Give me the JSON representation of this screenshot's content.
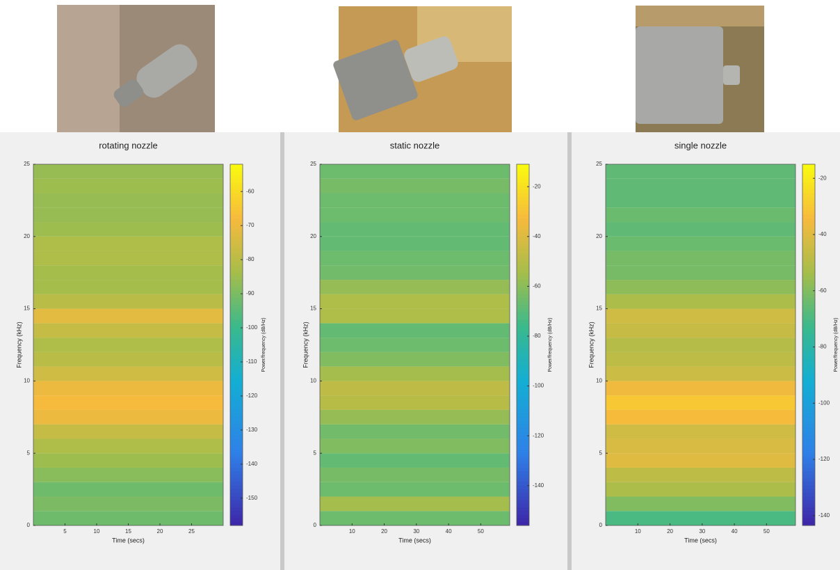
{
  "chart_data": [
    {
      "type": "spectrogram",
      "title": "rotating nozzle",
      "xlabel": "Time (secs)",
      "ylabel": "Frequency (kHz)",
      "colorbar_label": "Power/frequency (dB/Hz)",
      "colormap": "parula",
      "xlim": [
        0,
        30
      ],
      "xticks": [
        5,
        10,
        15,
        20,
        25
      ],
      "ylim": [
        0,
        25
      ],
      "yticks": [
        0,
        5,
        10,
        15,
        20,
        25
      ],
      "clim": [
        -158,
        -52
      ],
      "cticks": [
        -60,
        -70,
        -80,
        -90,
        -100,
        -110,
        -120,
        -130,
        -140,
        -150
      ],
      "frequencies": [
        0.5,
        1.5,
        2.5,
        3.5,
        4.5,
        5.5,
        6.5,
        7.5,
        8.5,
        9.5,
        10.5,
        11.5,
        12.5,
        13.5,
        14.5,
        15.5,
        16.5,
        17.5,
        18.5,
        19.5,
        20.5,
        21.5,
        22.5,
        23.5,
        24.5
      ],
      "power": [
        -92,
        -90,
        -92,
        -88,
        -85,
        -82,
        -78,
        -70,
        -68,
        -70,
        -76,
        -80,
        -82,
        -78,
        -72,
        -80,
        -84,
        -84,
        -82,
        -82,
        -85,
        -86,
        -86,
        -85,
        -86
      ]
    },
    {
      "type": "spectrogram",
      "title": "static nozzle",
      "xlabel": "Time (secs)",
      "ylabel": "Frequency (kHz)",
      "colorbar_label": "Power/frequency (dB/Hz)",
      "colormap": "parula",
      "xlim": [
        0,
        59
      ],
      "xticks": [
        10,
        20,
        30,
        40,
        50
      ],
      "ylim": [
        0,
        25
      ],
      "yticks": [
        0,
        5,
        10,
        15,
        20,
        25
      ],
      "clim": [
        -156,
        -11
      ],
      "cticks": [
        -20,
        -40,
        -60,
        -80,
        -100,
        -120,
        -140
      ],
      "frequencies": [
        0.5,
        1.5,
        2.5,
        3.5,
        4.5,
        5.5,
        6.5,
        7.5,
        8.5,
        9.5,
        10.5,
        11.5,
        12.5,
        13.5,
        14.5,
        15.5,
        16.5,
        17.5,
        18.5,
        19.5,
        20.5,
        21.5,
        22.5,
        23.5,
        24.5
      ],
      "power": [
        -66,
        -55,
        -66,
        -64,
        -68,
        -62,
        -65,
        -58,
        -50,
        -48,
        -55,
        -62,
        -66,
        -68,
        -52,
        -52,
        -58,
        -65,
        -66,
        -68,
        -68,
        -66,
        -66,
        -64,
        -66
      ]
    },
    {
      "type": "spectrogram",
      "title": "single nozzle",
      "xlabel": "Time (secs)",
      "ylabel": "Frequency (kHz)",
      "colorbar_label": "Power/frequency (dB/Hz)",
      "colormap": "parula",
      "xlim": [
        0,
        59
      ],
      "xticks": [
        10,
        20,
        30,
        40,
        50
      ],
      "ylim": [
        0,
        25
      ],
      "yticks": [
        0,
        5,
        10,
        15,
        20,
        25
      ],
      "clim": [
        -143.5,
        -15
      ],
      "cticks": [
        -20,
        -40,
        -60,
        -80,
        -100,
        -120,
        -140
      ],
      "frequencies": [
        0.5,
        1.5,
        2.5,
        3.5,
        4.5,
        5.5,
        6.5,
        7.5,
        8.5,
        9.5,
        10.5,
        11.5,
        12.5,
        13.5,
        14.5,
        15.5,
        16.5,
        17.5,
        18.5,
        19.5,
        20.5,
        21.5,
        22.5,
        23.5,
        24.5
      ],
      "power": [
        -70,
        -60,
        -52,
        -48,
        -40,
        -42,
        -44,
        -34,
        -30,
        -36,
        -45,
        -48,
        -50,
        -46,
        -44,
        -52,
        -58,
        -62,
        -62,
        -64,
        -66,
        -64,
        -66,
        -66,
        -66
      ]
    }
  ]
}
